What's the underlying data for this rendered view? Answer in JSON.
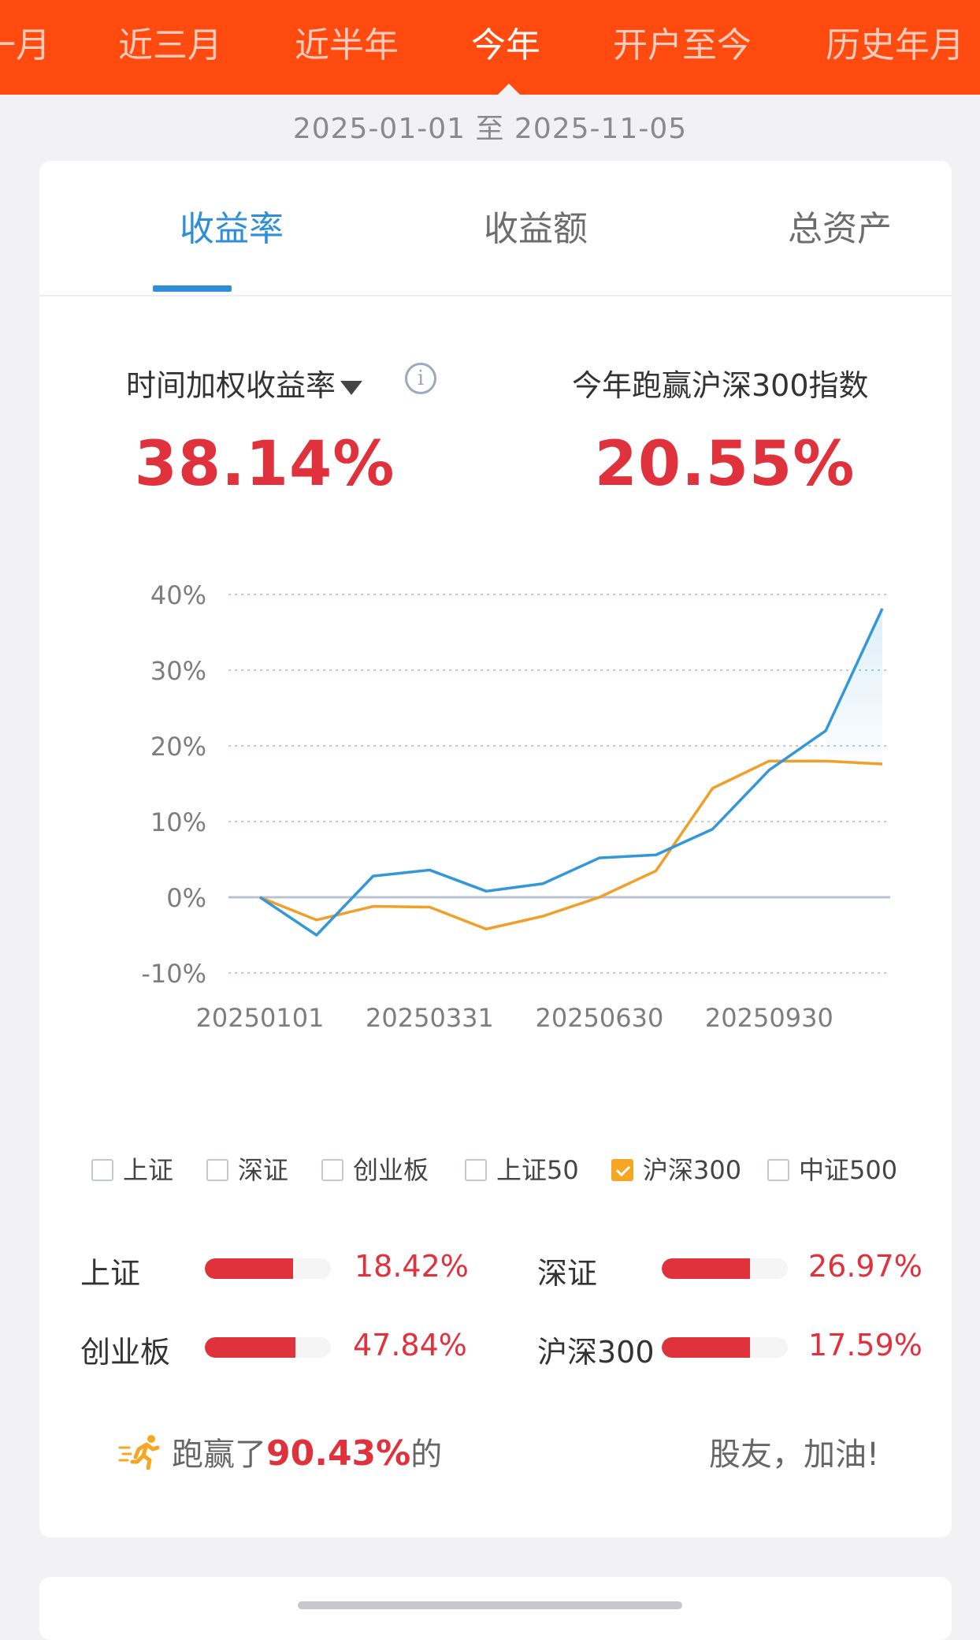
{
  "period_tabs": [
    "一月",
    "近三月",
    "近半年",
    "今年",
    "开户至今",
    "历史年月"
  ],
  "date_range": "2025-01-01 至 2025-11-05",
  "metric_tabs": [
    "收益率",
    "收益额",
    "总资产"
  ],
  "stats": {
    "left_label": "时间加权收益率",
    "left_value": "38.14%",
    "right_label": "今年跑赢沪深300指数",
    "right_value": "20.55%"
  },
  "chart_data": {
    "type": "line",
    "x": [
      "20250101",
      "20250201",
      "20250228",
      "20250331",
      "20250430",
      "20250530",
      "20250630",
      "20250731",
      "20250831",
      "20250930",
      "20251031",
      "20251105"
    ],
    "x_ticks": [
      "20250101",
      "20250331",
      "20250630",
      "20250930"
    ],
    "y_ticks": [
      "40%",
      "30%",
      "20%",
      "10%",
      "0%",
      "-10%"
    ],
    "ylim": [
      -10,
      40
    ],
    "grid": true,
    "series": [
      {
        "name": "收益率",
        "color": "#3498d8",
        "values": [
          0,
          -5,
          2.8,
          3.6,
          0.8,
          1.8,
          5.2,
          5.6,
          9.0,
          16.8,
          22.0,
          38.14
        ]
      },
      {
        "name": "沪深300",
        "color": "#f0a02a",
        "values": [
          0,
          -3,
          -1.2,
          -1.3,
          -4.2,
          -2.5,
          0,
          3.5,
          14.4,
          18.0,
          18.0,
          17.6
        ]
      }
    ]
  },
  "legend": [
    {
      "label": "上证",
      "checked": false
    },
    {
      "label": "深证",
      "checked": false
    },
    {
      "label": "创业板",
      "checked": false
    },
    {
      "label": "上证50",
      "checked": false
    },
    {
      "label": "沪深300",
      "checked": true
    },
    {
      "label": "中证500",
      "checked": false
    }
  ],
  "index_returns": [
    {
      "name": "上证",
      "value": "18.42%",
      "fill": 0.7
    },
    {
      "name": "深证",
      "value": "26.97%",
      "fill": 0.7
    },
    {
      "name": "创业板",
      "value": "47.84%",
      "fill": 0.72
    },
    {
      "name": "沪深300",
      "value": "17.59%",
      "fill": 0.7
    }
  ],
  "beat": {
    "prefix": "跑赢了",
    "percent": "90.43%",
    "suffix": "的",
    "tail": "股友，加油!"
  }
}
